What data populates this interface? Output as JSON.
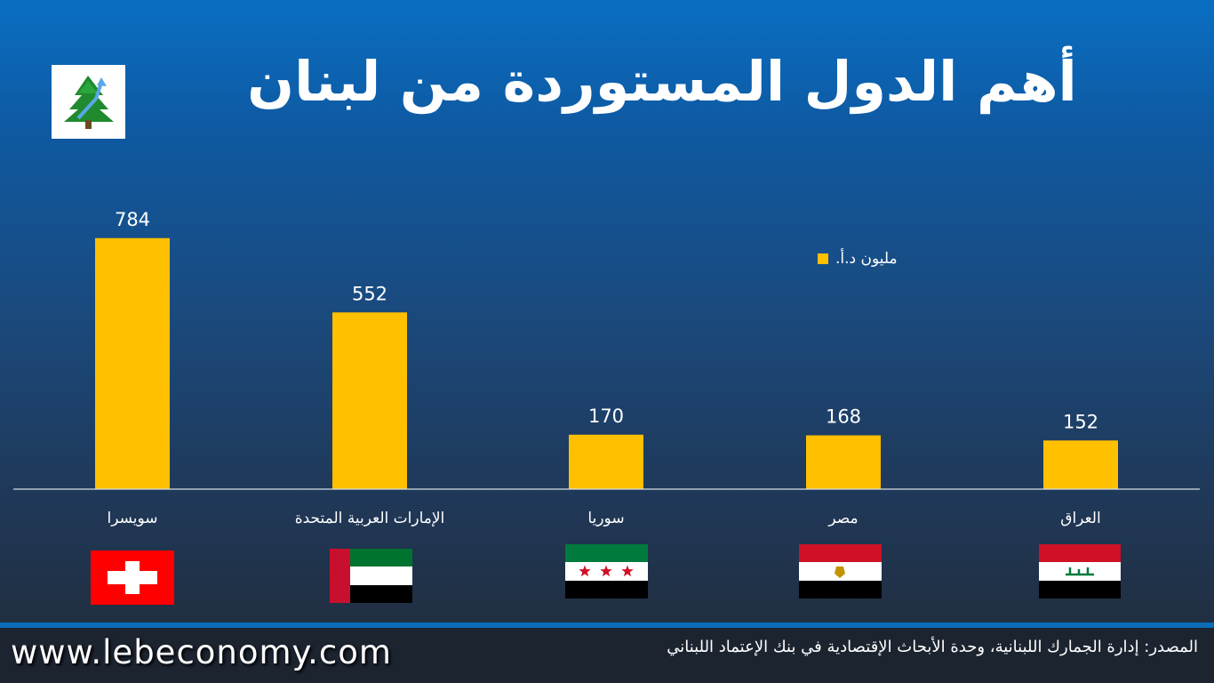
{
  "header": {
    "title": "أهم الدول المستوردة من لبنان",
    "logo_icon": "cedar-tree-arrow-logo"
  },
  "chart_data": {
    "type": "bar",
    "categories": [
      "سويسرا",
      "الإمارات العربية المتحدة",
      "سوريا",
      "مصر",
      "العراق"
    ],
    "series": [
      {
        "name": "مليون د.أ.",
        "values": [
          784,
          552,
          170,
          168,
          152
        ],
        "color": "#ffc000"
      }
    ],
    "data_labels": [
      "784",
      "552",
      "170",
      "168",
      "152"
    ],
    "ylim": [
      0,
      800
    ],
    "grid": false,
    "legend_position": "top-right"
  },
  "flags": [
    {
      "country": "سويسرا",
      "icon": "switzerland-flag"
    },
    {
      "country": "الإمارات العربية المتحدة",
      "icon": "uae-flag"
    },
    {
      "country": "سوريا",
      "icon": "syria-flag"
    },
    {
      "country": "مصر",
      "icon": "egypt-flag"
    },
    {
      "country": "العراق",
      "icon": "iraq-flag"
    }
  ],
  "footer": {
    "site_url": "www.lebeconomy.com",
    "source_text": "المصدر: إدارة الجمارك اللبنانية، وحدة الأبحاث الإقتصادية في بنك الإعتماد اللبناني"
  },
  "colors": {
    "bar": "#ffc000",
    "background_top": "#0a6fc2",
    "background_bottom": "#222a36"
  }
}
